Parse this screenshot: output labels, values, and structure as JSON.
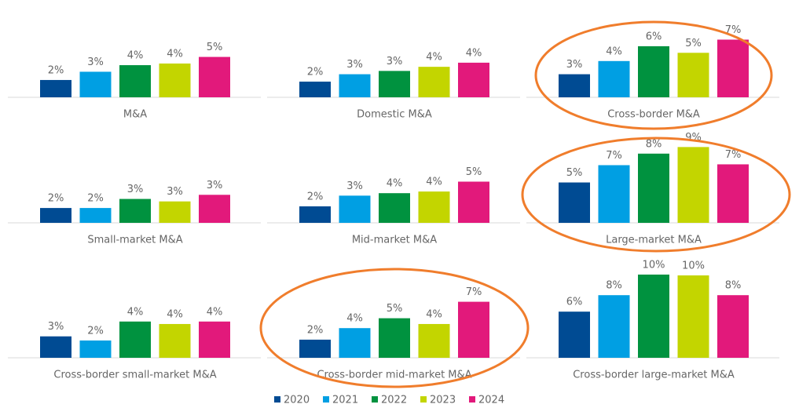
{
  "chart_data": [
    {
      "type": "bar",
      "title": "M&A",
      "values": [
        2.1,
        3.1,
        3.9,
        4.1,
        4.9
      ],
      "value_labels": [
        "2%",
        "3%",
        "4%",
        "4%",
        "5%"
      ],
      "ylim": [
        0,
        11
      ],
      "highlight": false
    },
    {
      "type": "bar",
      "title": "Domestic M&A",
      "values": [
        1.9,
        2.8,
        3.2,
        3.7,
        4.2
      ],
      "value_labels": [
        "2%",
        "3%",
        "3%",
        "4%",
        "4%"
      ],
      "ylim": [
        0,
        11
      ],
      "highlight": false
    },
    {
      "type": "bar",
      "title": "Cross-border M&A",
      "values": [
        2.8,
        4.4,
        6.2,
        5.4,
        7.0
      ],
      "value_labels": [
        "3%",
        "4%",
        "6%",
        "5%",
        "7%"
      ],
      "ylim": [
        0,
        11
      ],
      "highlight": true
    },
    {
      "type": "bar",
      "title": "Small-market M&A",
      "values": [
        1.8,
        1.8,
        2.9,
        2.6,
        3.4
      ],
      "value_labels": [
        "2%",
        "2%",
        "3%",
        "3%",
        "3%"
      ],
      "ylim": [
        0,
        11
      ],
      "highlight": false
    },
    {
      "type": "bar",
      "title": "Mid-market M&A",
      "values": [
        2.0,
        3.3,
        3.6,
        3.8,
        5.0
      ],
      "value_labels": [
        "2%",
        "3%",
        "4%",
        "4%",
        "5%"
      ],
      "ylim": [
        0,
        11
      ],
      "highlight": false
    },
    {
      "type": "bar",
      "title": "Large-market M&A",
      "values": [
        4.9,
        7.0,
        8.4,
        9.2,
        7.1
      ],
      "value_labels": [
        "5%",
        "7%",
        "8%",
        "9%",
        "7%"
      ],
      "ylim": [
        0,
        11
      ],
      "highlight": true
    },
    {
      "type": "bar",
      "title": "Cross-border small-market M&A",
      "values": [
        2.6,
        2.1,
        4.4,
        4.1,
        4.4
      ],
      "value_labels": [
        "3%",
        "2%",
        "4%",
        "4%",
        "4%"
      ],
      "ylim": [
        0,
        11
      ],
      "highlight": false
    },
    {
      "type": "bar",
      "title": "Cross-border mid-market M&A",
      "values": [
        2.2,
        3.6,
        4.8,
        4.1,
        6.8
      ],
      "value_labels": [
        "2%",
        "4%",
        "5%",
        "4%",
        "7%"
      ],
      "ylim": [
        0,
        11
      ],
      "highlight": true
    },
    {
      "type": "bar",
      "title": "Cross-border large-market M&A",
      "values": [
        5.6,
        7.6,
        10.1,
        10.0,
        7.6
      ],
      "value_labels": [
        "6%",
        "8%",
        "10%",
        "10%",
        "8%"
      ],
      "ylim": [
        0,
        11
      ],
      "highlight": false
    }
  ],
  "legend": {
    "series": [
      {
        "name": "2020",
        "color": "#004b93"
      },
      {
        "name": "2021",
        "color": "#009fe3"
      },
      {
        "name": "2022",
        "color": "#00923f"
      },
      {
        "name": "2023",
        "color": "#c3d500"
      },
      {
        "name": "2024",
        "color": "#e2197b"
      }
    ]
  }
}
